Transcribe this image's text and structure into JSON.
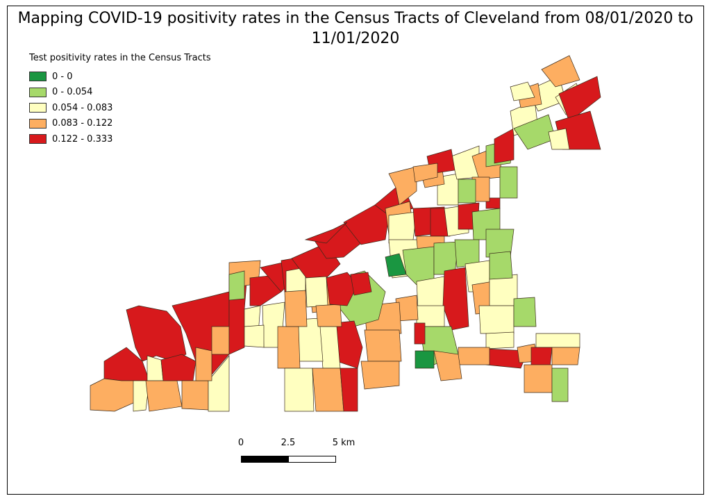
{
  "map": {
    "title_line1": "Mapping COVID-19 positivity rates in the Census Tracts of Cleveland from 08/01/2020 to",
    "title_line2": "11/01/2020"
  },
  "legend": {
    "title": "Test positivity rates in the Census Tracts",
    "items": [
      {
        "label": "0 - 0",
        "color": "#1a9641"
      },
      {
        "label": "0 - 0.054",
        "color": "#a6d96a"
      },
      {
        "label": "0.054 - 0.083",
        "color": "#ffffc0"
      },
      {
        "label": "0.083 - 0.122",
        "color": "#fdae61"
      },
      {
        "label": "0.122 - 0.333",
        "color": "#d7191c"
      }
    ]
  },
  "scale_bar": {
    "labels": [
      "0",
      "2.5",
      "5 km"
    ]
  },
  "colors": {
    "outline": "#3a2a1a",
    "frame": "#000000"
  }
}
